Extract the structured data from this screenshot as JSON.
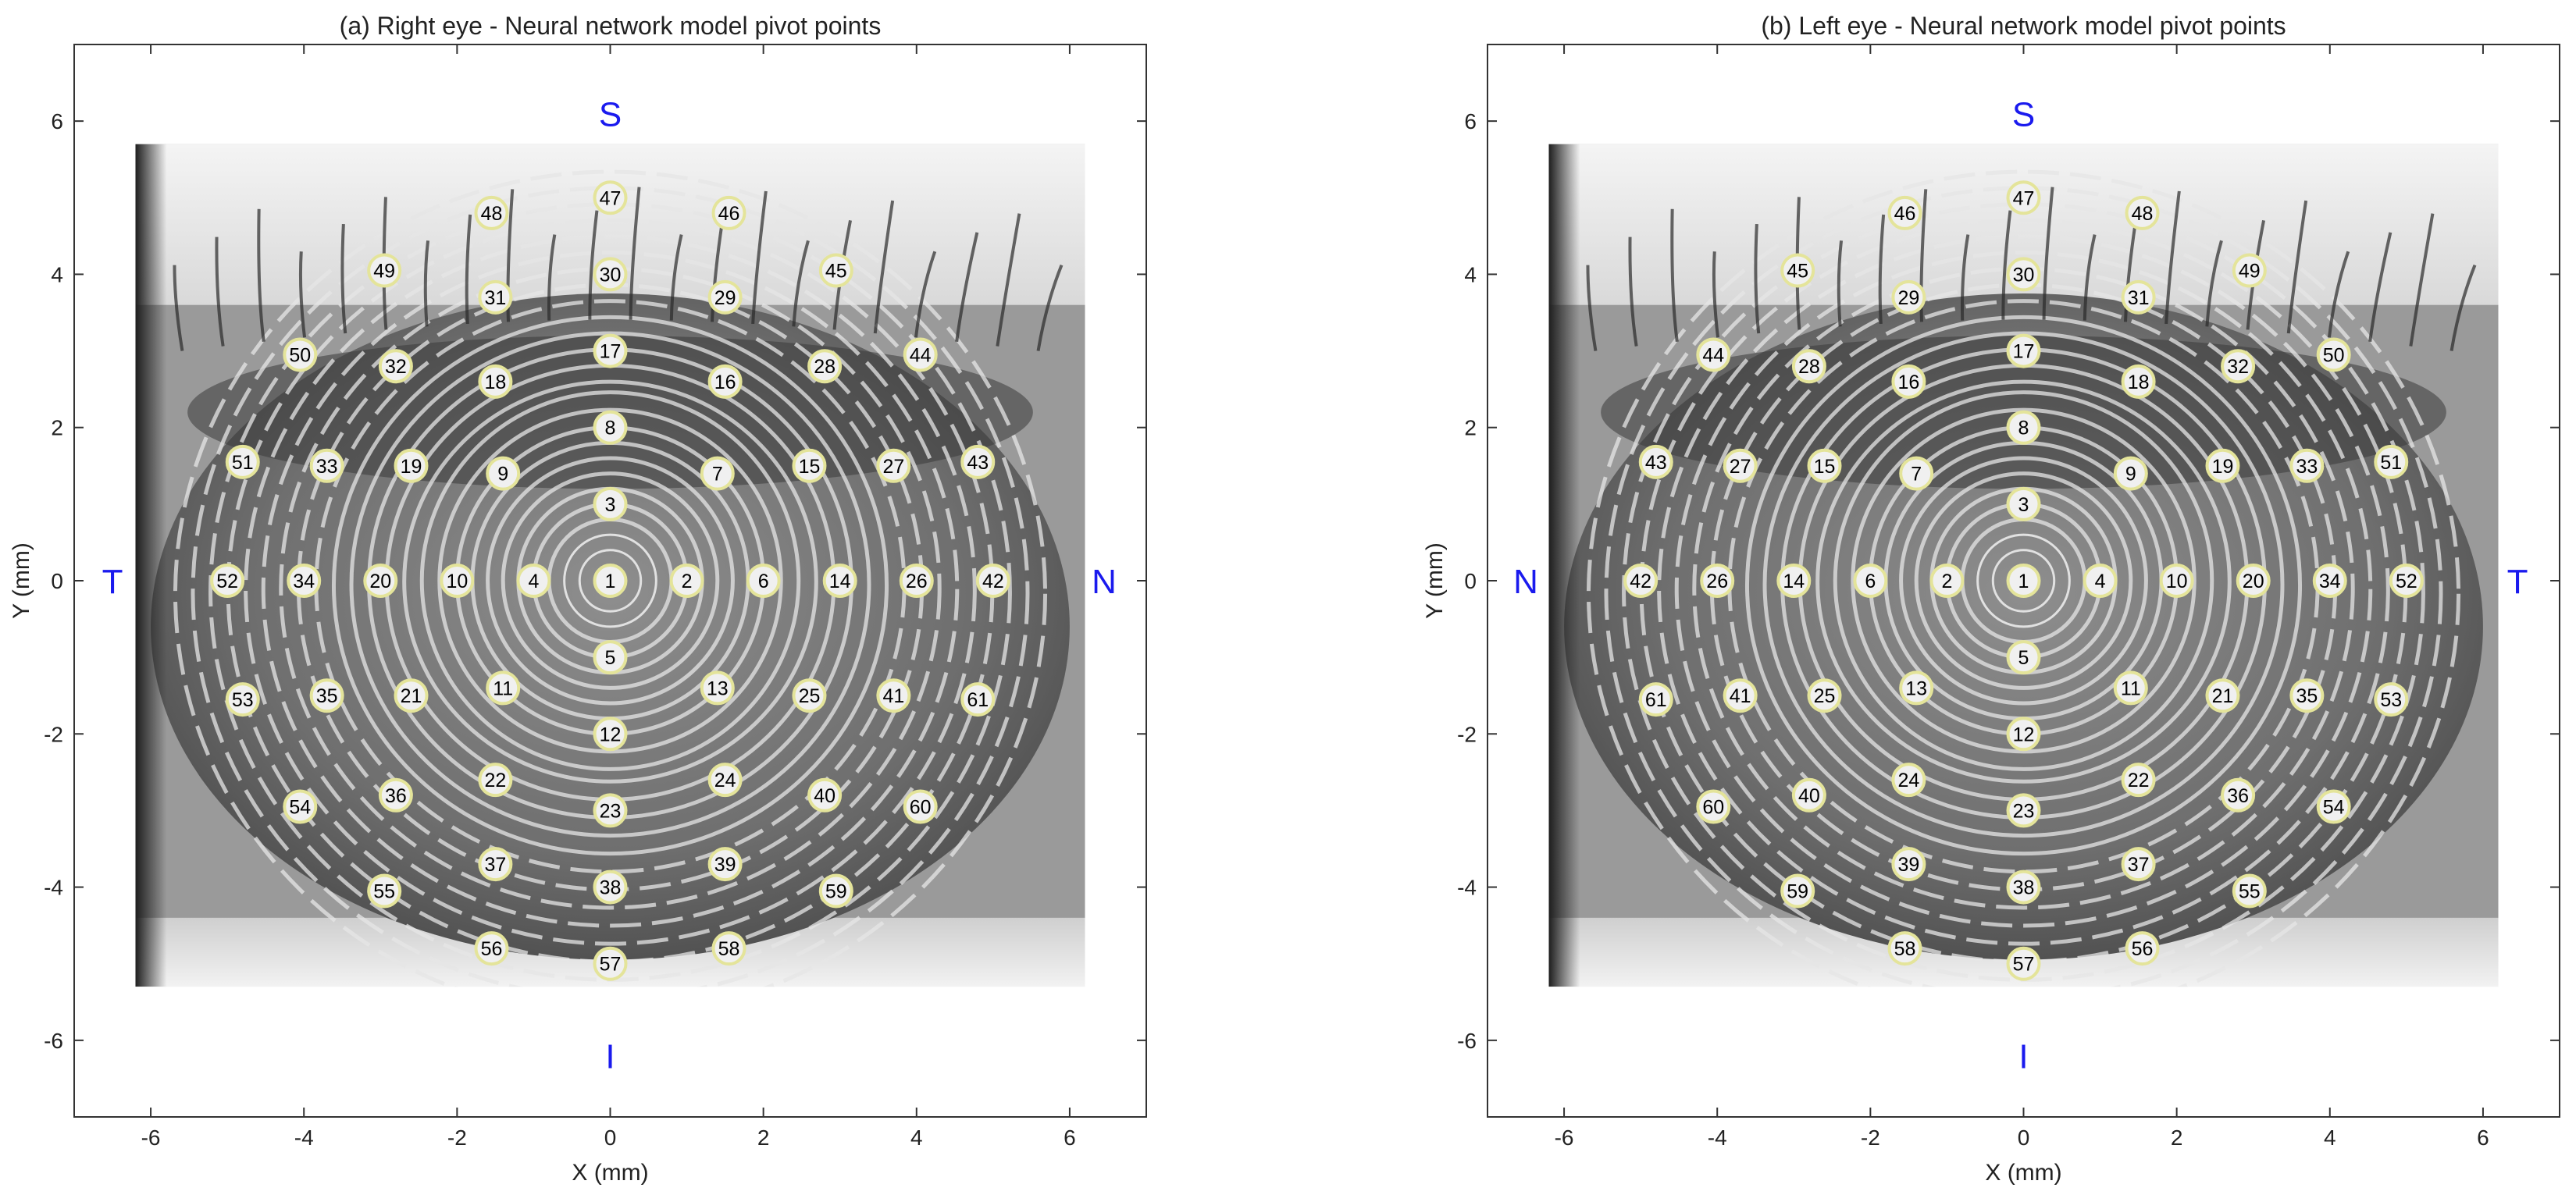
{
  "colors": {
    "point_fill": "#f0f0f0",
    "point_edge": "#e4e49a",
    "direction_label": "#1a1aee",
    "axis": "#333333"
  },
  "chart_data": [
    {
      "type": "scatter",
      "background": "grayscale eye image with concentric Placido rings",
      "title": "(a) Right eye - Neural network model pivot points",
      "xlabel": "X (mm)",
      "ylabel": "Y (mm)",
      "xlim": [
        -7,
        7
      ],
      "ylim": [
        -7,
        7
      ],
      "xticks": [
        -6,
        -4,
        -2,
        0,
        2,
        4,
        6
      ],
      "yticks": [
        -6,
        -4,
        -2,
        0,
        2,
        4,
        6
      ],
      "direction_labels": {
        "top": "S",
        "bottom": "I",
        "left": "T",
        "right": "N"
      },
      "points": [
        {
          "id": "1",
          "x": 0,
          "y": 0
        },
        {
          "id": "2",
          "x": 1,
          "y": 0
        },
        {
          "id": "3",
          "x": 0,
          "y": 1
        },
        {
          "id": "4",
          "x": -1,
          "y": 0
        },
        {
          "id": "5",
          "x": 0,
          "y": -1
        },
        {
          "id": "6",
          "x": 2,
          "y": 0
        },
        {
          "id": "7",
          "x": 1.4,
          "y": 1.4
        },
        {
          "id": "8",
          "x": 0,
          "y": 2
        },
        {
          "id": "9",
          "x": -1.4,
          "y": 1.4
        },
        {
          "id": "10",
          "x": -2,
          "y": 0
        },
        {
          "id": "11",
          "x": -1.4,
          "y": -1.4
        },
        {
          "id": "12",
          "x": 0,
          "y": -2
        },
        {
          "id": "13",
          "x": 1.4,
          "y": -1.4
        },
        {
          "id": "14",
          "x": 3,
          "y": 0
        },
        {
          "id": "15",
          "x": 2.6,
          "y": 1.5
        },
        {
          "id": "16",
          "x": 1.5,
          "y": 2.6
        },
        {
          "id": "17",
          "x": 0,
          "y": 3
        },
        {
          "id": "18",
          "x": -1.5,
          "y": 2.6
        },
        {
          "id": "19",
          "x": -2.6,
          "y": 1.5
        },
        {
          "id": "20",
          "x": -3,
          "y": 0
        },
        {
          "id": "21",
          "x": -2.6,
          "y": -1.5
        },
        {
          "id": "22",
          "x": -1.5,
          "y": -2.6
        },
        {
          "id": "23",
          "x": 0,
          "y": -3
        },
        {
          "id": "24",
          "x": 1.5,
          "y": -2.6
        },
        {
          "id": "25",
          "x": 2.6,
          "y": -1.5
        },
        {
          "id": "26",
          "x": 4,
          "y": 0
        },
        {
          "id": "27",
          "x": 3.7,
          "y": 1.5
        },
        {
          "id": "28",
          "x": 2.8,
          "y": 2.8
        },
        {
          "id": "29",
          "x": 1.5,
          "y": 3.7
        },
        {
          "id": "30",
          "x": 0,
          "y": 4
        },
        {
          "id": "31",
          "x": -1.5,
          "y": 3.7
        },
        {
          "id": "32",
          "x": -2.8,
          "y": 2.8
        },
        {
          "id": "33",
          "x": -3.7,
          "y": 1.5
        },
        {
          "id": "34",
          "x": -4,
          "y": 0
        },
        {
          "id": "35",
          "x": -3.7,
          "y": -1.5
        },
        {
          "id": "36",
          "x": -2.8,
          "y": -2.8
        },
        {
          "id": "37",
          "x": -1.5,
          "y": -3.7
        },
        {
          "id": "38",
          "x": 0,
          "y": -4
        },
        {
          "id": "39",
          "x": 1.5,
          "y": -3.7
        },
        {
          "id": "40",
          "x": 2.8,
          "y": -2.8
        },
        {
          "id": "41",
          "x": 3.7,
          "y": -1.5
        },
        {
          "id": "42",
          "x": 5,
          "y": 0
        },
        {
          "id": "43",
          "x": 4.8,
          "y": 1.55
        },
        {
          "id": "44",
          "x": 4.05,
          "y": 2.95
        },
        {
          "id": "45",
          "x": 2.95,
          "y": 4.05
        },
        {
          "id": "46",
          "x": 1.55,
          "y": 4.8
        },
        {
          "id": "47",
          "x": 0,
          "y": 5
        },
        {
          "id": "48",
          "x": -1.55,
          "y": 4.8
        },
        {
          "id": "49",
          "x": -2.95,
          "y": 4.05
        },
        {
          "id": "50",
          "x": -4.05,
          "y": 2.95
        },
        {
          "id": "51",
          "x": -4.8,
          "y": 1.55
        },
        {
          "id": "52",
          "x": -5,
          "y": 0
        },
        {
          "id": "53",
          "x": -4.8,
          "y": -1.55
        },
        {
          "id": "54",
          "x": -4.05,
          "y": -2.95
        },
        {
          "id": "55",
          "x": -2.95,
          "y": -4.05
        },
        {
          "id": "56",
          "x": -1.55,
          "y": -4.8
        },
        {
          "id": "57",
          "x": 0,
          "y": -5
        },
        {
          "id": "58",
          "x": 1.55,
          "y": -4.8
        },
        {
          "id": "59",
          "x": 2.95,
          "y": -4.05
        },
        {
          "id": "60",
          "x": 4.05,
          "y": -2.95
        },
        {
          "id": "61",
          "x": 4.8,
          "y": -1.55
        }
      ]
    },
    {
      "type": "scatter",
      "background": "grayscale eye image with concentric Placido rings",
      "title": "(b) Left eye - Neural network model pivot points",
      "xlabel": "X (mm)",
      "ylabel": "Y (mm)",
      "xlim": [
        -7,
        7
      ],
      "ylim": [
        -7,
        7
      ],
      "xticks": [
        -6,
        -4,
        -2,
        0,
        2,
        4,
        6
      ],
      "yticks": [
        -6,
        -4,
        -2,
        0,
        2,
        4,
        6
      ],
      "direction_labels": {
        "top": "S",
        "bottom": "I",
        "left": "N",
        "right": "T"
      },
      "points": [
        {
          "id": "1",
          "x": 0,
          "y": 0
        },
        {
          "id": "2",
          "x": -1,
          "y": 0
        },
        {
          "id": "3",
          "x": 0,
          "y": 1
        },
        {
          "id": "4",
          "x": 1,
          "y": 0
        },
        {
          "id": "5",
          "x": 0,
          "y": -1
        },
        {
          "id": "6",
          "x": -2,
          "y": 0
        },
        {
          "id": "7",
          "x": -1.4,
          "y": 1.4
        },
        {
          "id": "8",
          "x": 0,
          "y": 2
        },
        {
          "id": "9",
          "x": 1.4,
          "y": 1.4
        },
        {
          "id": "10",
          "x": 2,
          "y": 0
        },
        {
          "id": "11",
          "x": 1.4,
          "y": -1.4
        },
        {
          "id": "12",
          "x": 0,
          "y": -2
        },
        {
          "id": "13",
          "x": -1.4,
          "y": -1.4
        },
        {
          "id": "14",
          "x": -3,
          "y": 0
        },
        {
          "id": "15",
          "x": -2.6,
          "y": 1.5
        },
        {
          "id": "16",
          "x": -1.5,
          "y": 2.6
        },
        {
          "id": "17",
          "x": 0,
          "y": 3
        },
        {
          "id": "18",
          "x": 1.5,
          "y": 2.6
        },
        {
          "id": "19",
          "x": 2.6,
          "y": 1.5
        },
        {
          "id": "20",
          "x": 3,
          "y": 0
        },
        {
          "id": "21",
          "x": 2.6,
          "y": -1.5
        },
        {
          "id": "22",
          "x": 1.5,
          "y": -2.6
        },
        {
          "id": "23",
          "x": 0,
          "y": -3
        },
        {
          "id": "24",
          "x": -1.5,
          "y": -2.6
        },
        {
          "id": "25",
          "x": -2.6,
          "y": -1.5
        },
        {
          "id": "26",
          "x": -4,
          "y": 0
        },
        {
          "id": "27",
          "x": -3.7,
          "y": 1.5
        },
        {
          "id": "28",
          "x": -2.8,
          "y": 2.8
        },
        {
          "id": "29",
          "x": -1.5,
          "y": 3.7
        },
        {
          "id": "30",
          "x": 0,
          "y": 4
        },
        {
          "id": "31",
          "x": 1.5,
          "y": 3.7
        },
        {
          "id": "32",
          "x": 2.8,
          "y": 2.8
        },
        {
          "id": "33",
          "x": 3.7,
          "y": 1.5
        },
        {
          "id": "34",
          "x": 4,
          "y": 0
        },
        {
          "id": "35",
          "x": 3.7,
          "y": -1.5
        },
        {
          "id": "36",
          "x": 2.8,
          "y": -2.8
        },
        {
          "id": "37",
          "x": 1.5,
          "y": -3.7
        },
        {
          "id": "38",
          "x": 0,
          "y": -4
        },
        {
          "id": "39",
          "x": -1.5,
          "y": -3.7
        },
        {
          "id": "40",
          "x": -2.8,
          "y": -2.8
        },
        {
          "id": "41",
          "x": -3.7,
          "y": -1.5
        },
        {
          "id": "42",
          "x": -5,
          "y": 0
        },
        {
          "id": "43",
          "x": -4.8,
          "y": 1.55
        },
        {
          "id": "44",
          "x": -4.05,
          "y": 2.95
        },
        {
          "id": "45",
          "x": -2.95,
          "y": 4.05
        },
        {
          "id": "46",
          "x": -1.55,
          "y": 4.8
        },
        {
          "id": "47",
          "x": 0,
          "y": 5
        },
        {
          "id": "48",
          "x": 1.55,
          "y": 4.8
        },
        {
          "id": "49",
          "x": 2.95,
          "y": 4.05
        },
        {
          "id": "50",
          "x": 4.05,
          "y": 2.95
        },
        {
          "id": "51",
          "x": 4.8,
          "y": 1.55
        },
        {
          "id": "52",
          "x": 5,
          "y": 0
        },
        {
          "id": "53",
          "x": 4.8,
          "y": -1.55
        },
        {
          "id": "54",
          "x": 4.05,
          "y": -2.95
        },
        {
          "id": "55",
          "x": 2.95,
          "y": -4.05
        },
        {
          "id": "56",
          "x": 1.55,
          "y": -4.8
        },
        {
          "id": "57",
          "x": 0,
          "y": -5
        },
        {
          "id": "58",
          "x": -1.55,
          "y": -4.8
        },
        {
          "id": "59",
          "x": -2.95,
          "y": -4.05
        },
        {
          "id": "60",
          "x": -4.05,
          "y": -2.95
        },
        {
          "id": "61",
          "x": -4.8,
          "y": -1.55
        }
      ]
    }
  ]
}
